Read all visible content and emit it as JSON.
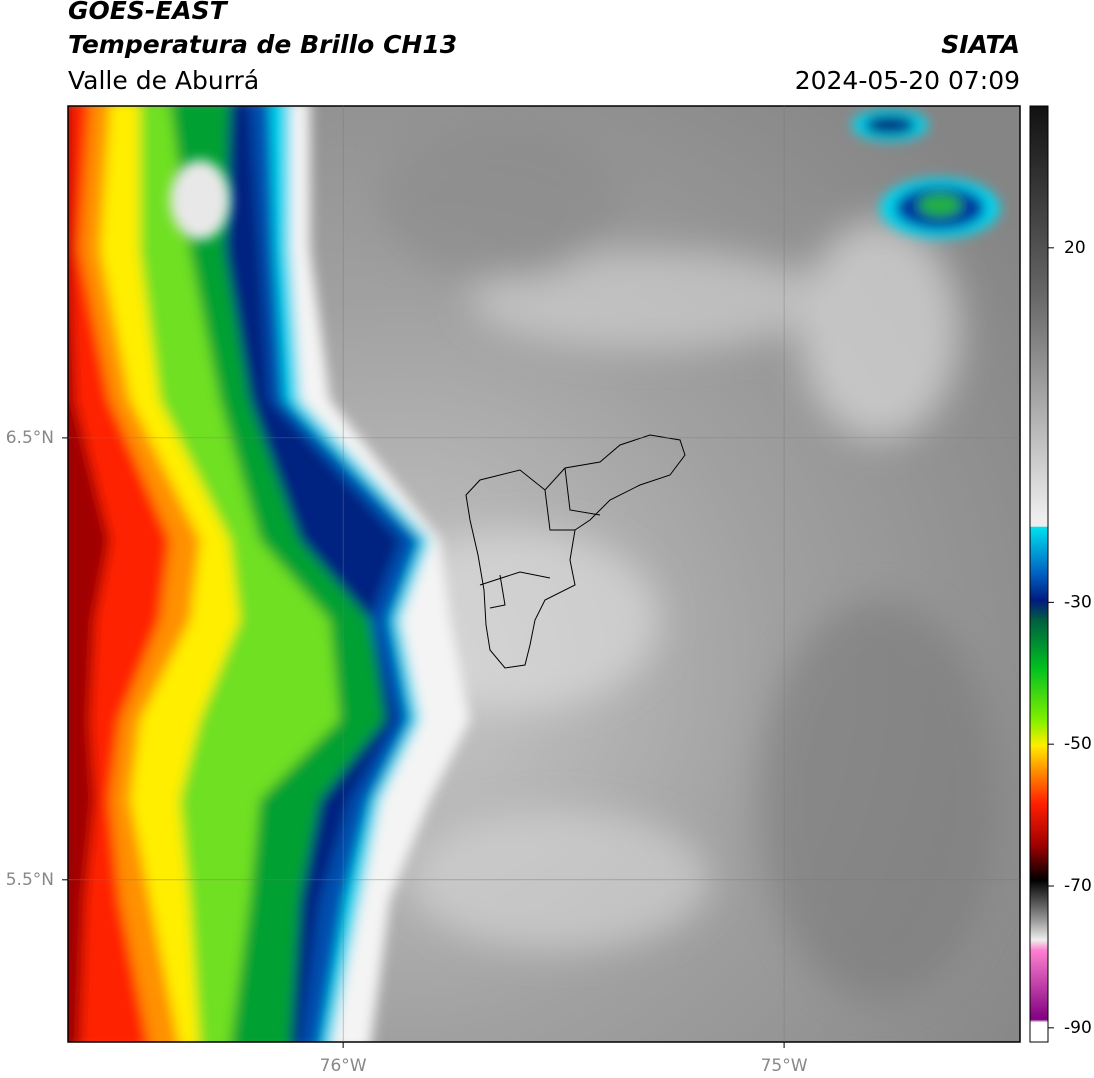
{
  "header": {
    "title": "GOES-EAST",
    "subtitle": "Temperatura de Brillo CH13",
    "region": "Valle de Aburrá",
    "source": "SIATA",
    "datetime": "2024-05-20 07:09"
  },
  "map": {
    "lonlim": [
      -76.624,
      -74.465
    ],
    "latlim": [
      5.133,
      7.251
    ],
    "lon_ticks": [
      {
        "value": -76,
        "label": "76°W"
      },
      {
        "value": -75,
        "label": "75°W"
      }
    ],
    "lat_ticks": [
      {
        "value": 6.5,
        "label": "6.5°N"
      },
      {
        "value": 5.5,
        "label": "5.5°N"
      }
    ]
  },
  "colorbar": {
    "range": [
      -92,
      40
    ],
    "ticks": [
      20,
      -30,
      -50,
      -70,
      -90
    ]
  }
}
